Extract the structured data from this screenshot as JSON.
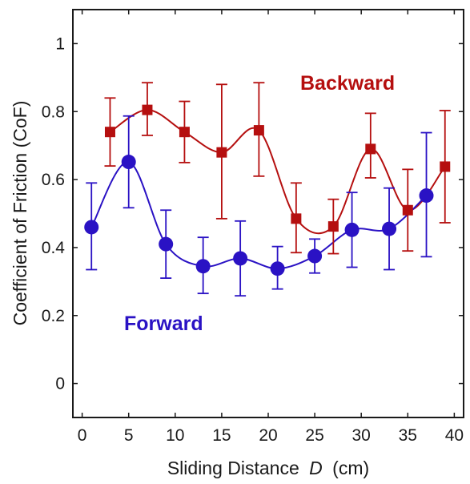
{
  "chart_data": {
    "type": "scatter",
    "title": "",
    "xlabel": "Sliding Distance",
    "xlabel_var": "D",
    "xlabel_unit": "(cm)",
    "ylabel": "Coefficient of Friction (CoF)",
    "xlim": [
      -1,
      41
    ],
    "ylim": [
      -0.1,
      1.1
    ],
    "xticks": [
      0,
      5,
      10,
      15,
      20,
      25,
      30,
      35,
      40
    ],
    "yticks": [
      0,
      0.2,
      0.4,
      0.6,
      0.8,
      1
    ],
    "ytick_labels": [
      "0",
      "0.2",
      "0.4",
      "0.6",
      "0.8",
      "1"
    ],
    "grid": false,
    "legend": "none",
    "series": [
      {
        "name": "Backward",
        "color": "#b50f0f",
        "marker": "square",
        "label_position": "top-right",
        "x": [
          3,
          7,
          11,
          15,
          19,
          23,
          27,
          31,
          35,
          39
        ],
        "y": [
          0.74,
          0.805,
          0.74,
          0.68,
          0.745,
          0.485,
          0.462,
          0.69,
          0.51,
          0.638
        ],
        "err_low": [
          0.1,
          0.075,
          0.09,
          0.195,
          0.135,
          0.1,
          0.08,
          0.085,
          0.12,
          0.165
        ],
        "err_high": [
          0.1,
          0.08,
          0.09,
          0.2,
          0.14,
          0.105,
          0.08,
          0.105,
          0.12,
          0.165
        ]
      },
      {
        "name": "Forward",
        "color": "#2a12c4",
        "marker": "circle",
        "label_position": "bottom-left",
        "x": [
          1,
          5,
          9,
          13,
          17,
          21,
          25,
          29,
          33,
          37
        ],
        "y": [
          0.46,
          0.652,
          0.41,
          0.345,
          0.368,
          0.338,
          0.375,
          0.452,
          0.455,
          0.553
        ],
        "err_low": [
          0.125,
          0.135,
          0.1,
          0.08,
          0.11,
          0.06,
          0.05,
          0.11,
          0.12,
          0.18
        ],
        "err_high": [
          0.13,
          0.135,
          0.1,
          0.085,
          0.11,
          0.065,
          0.05,
          0.11,
          0.12,
          0.185
        ]
      }
    ]
  }
}
